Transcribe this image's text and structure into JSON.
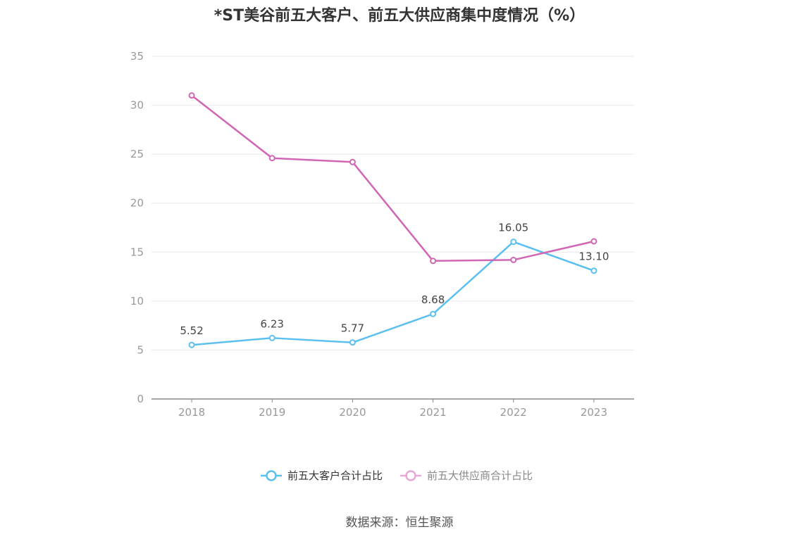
{
  "chart_data": {
    "type": "line",
    "title": "*ST美谷前五大客户、前五大供应商集中度情况（%）",
    "categories": [
      "2018",
      "2019",
      "2020",
      "2021",
      "2022",
      "2023"
    ],
    "ylim": [
      0,
      35
    ],
    "yticks": [
      0,
      5,
      10,
      15,
      20,
      25,
      30,
      35
    ],
    "grid": true,
    "legend_position": "bottom",
    "series": [
      {
        "name": "前五大客户合计占比",
        "color": "#5BC0F0",
        "values": [
          5.52,
          6.23,
          5.77,
          8.68,
          16.05,
          13.1
        ],
        "labels": [
          "5.52",
          "6.23",
          "5.77",
          "8.68",
          "16.05",
          "13.10"
        ]
      },
      {
        "name": "前五大供应商合计占比",
        "color": "#D066B4",
        "values": [
          31.0,
          24.6,
          24.2,
          14.1,
          14.2,
          16.1
        ],
        "labels": null
      }
    ]
  },
  "source": "数据来源：恒生聚源"
}
